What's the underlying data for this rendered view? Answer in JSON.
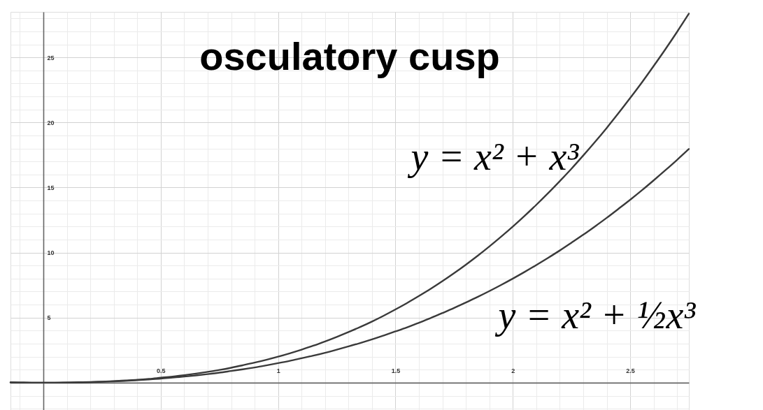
{
  "chart_data": {
    "type": "line",
    "title": "osculatory cusp",
    "x": [
      -0.14,
      -0.1,
      -0.05,
      0,
      0.05,
      0.1,
      0.15,
      0.2,
      0.25,
      0.3,
      0.35,
      0.4,
      0.45,
      0.5,
      0.55,
      0.6,
      0.65,
      0.7,
      0.75,
      0.8,
      0.85,
      0.9,
      0.95,
      1,
      1.05,
      1.1,
      1.15,
      1.2,
      1.25,
      1.3,
      1.35,
      1.4,
      1.45,
      1.5,
      1.55,
      1.6,
      1.65,
      1.7,
      1.75,
      1.8,
      1.85,
      1.9,
      1.95,
      2,
      2.05,
      2.1,
      2.15,
      2.2,
      2.25,
      2.3,
      2.35,
      2.4,
      2.45,
      2.5,
      2.55,
      2.6,
      2.65,
      2.7,
      2.75
    ],
    "series": [
      {
        "name": "y = x² + x³",
        "color": "#3a3a3a",
        "values": [
          0.02,
          0.01,
          0,
          0,
          0,
          0.01,
          0.03,
          0.05,
          0.08,
          0.12,
          0.17,
          0.22,
          0.29,
          0.38,
          0.47,
          0.58,
          0.7,
          0.83,
          0.98,
          1.15,
          1.34,
          1.54,
          1.76,
          2,
          2.26,
          2.54,
          2.84,
          3.17,
          3.52,
          3.89,
          4.28,
          4.7,
          5.15,
          5.63,
          6.13,
          6.66,
          7.21,
          7.8,
          8.42,
          9.07,
          9.75,
          10.47,
          11.22,
          12,
          12.82,
          13.67,
          14.56,
          15.49,
          16.45,
          17.46,
          18.5,
          19.58,
          20.71,
          21.88,
          23.08,
          24.34,
          25.63,
          26.97,
          28.36
        ]
      },
      {
        "name": "y = x² + ½x³",
        "color": "#3a3a3a",
        "values": [
          0.02,
          0.01,
          0,
          0,
          0,
          0.01,
          0.02,
          0.04,
          0.07,
          0.1,
          0.14,
          0.19,
          0.25,
          0.31,
          0.39,
          0.47,
          0.56,
          0.66,
          0.77,
          0.9,
          1.03,
          1.17,
          1.33,
          1.5,
          1.68,
          1.88,
          2.08,
          2.3,
          2.54,
          2.79,
          3.05,
          3.33,
          3.63,
          3.94,
          4.26,
          4.61,
          4.97,
          5.35,
          5.74,
          6.16,
          6.59,
          7.04,
          7.51,
          8,
          8.51,
          9.04,
          9.59,
          10.16,
          10.76,
          11.37,
          12.01,
          12.67,
          13.36,
          14.06,
          14.79,
          15.55,
          16.33,
          17.13,
          17.96
        ]
      }
    ],
    "xlim": [
      -0.14,
      2.75
    ],
    "ylim": [
      -2.1,
      28.5
    ],
    "xticks": [
      {
        "value": -0.1,
        "label": null
      },
      {
        "value": 0,
        "label": null
      },
      {
        "value": 0.1,
        "label": null
      },
      {
        "value": 0.2,
        "label": null
      },
      {
        "value": 0.3,
        "label": null
      },
      {
        "value": 0.4,
        "label": null
      },
      0.5,
      {
        "value": 0.6,
        "label": null
      },
      {
        "value": 0.7,
        "label": null
      },
      {
        "value": 0.8,
        "label": null
      },
      {
        "value": 0.9,
        "label": null
      },
      1,
      {
        "value": 1.1,
        "label": null
      },
      {
        "value": 1.2,
        "label": null
      },
      {
        "value": 1.3,
        "label": null
      },
      {
        "value": 1.4,
        "label": null
      },
      1.5,
      {
        "value": 1.6,
        "label": null
      },
      {
        "value": 1.7,
        "label": null
      },
      {
        "value": 1.8,
        "label": null
      },
      {
        "value": 1.9,
        "label": null
      },
      2,
      {
        "value": 2.1,
        "label": null
      },
      {
        "value": 2.2,
        "label": null
      },
      {
        "value": 2.3,
        "label": null
      },
      {
        "value": 2.4,
        "label": null
      },
      2.5,
      {
        "value": 2.6,
        "label": null
      },
      {
        "value": 2.7,
        "label": null
      }
    ],
    "yticks": [
      {
        "value": -2,
        "label": null
      },
      {
        "value": -1,
        "label": null
      },
      {
        "value": 0,
        "label": null
      },
      {
        "value": 1,
        "label": null
      },
      {
        "value": 2,
        "label": null
      },
      {
        "value": 3,
        "label": null
      },
      {
        "value": 4,
        "label": null
      },
      5,
      {
        "value": 6,
        "label": null
      },
      {
        "value": 7,
        "label": null
      },
      {
        "value": 8,
        "label": null
      },
      {
        "value": 9,
        "label": null
      },
      10,
      {
        "value": 11,
        "label": null
      },
      {
        "value": 12,
        "label": null
      },
      {
        "value": 13,
        "label": null
      },
      {
        "value": 14,
        "label": null
      },
      15,
      {
        "value": 16,
        "label": null
      },
      {
        "value": 17,
        "label": null
      },
      {
        "value": 18,
        "label": null
      },
      {
        "value": 19,
        "label": null
      },
      20,
      {
        "value": 21,
        "label": null
      },
      {
        "value": 22,
        "label": null
      },
      {
        "value": 23,
        "label": null
      },
      {
        "value": 24,
        "label": null
      },
      25,
      {
        "value": 26,
        "label": null
      },
      {
        "value": 27,
        "label": null
      },
      {
        "value": 28,
        "label": null
      }
    ],
    "grid": true,
    "line_style": "solid"
  }
}
